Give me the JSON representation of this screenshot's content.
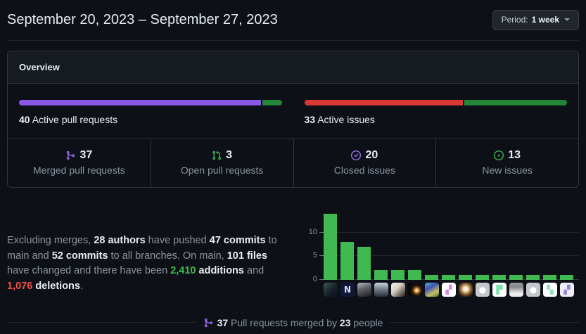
{
  "header": {
    "title": "September 20, 2023 – September 27, 2023",
    "period_button": {
      "label": "Period:",
      "value": "1 week"
    }
  },
  "overview": {
    "card_title": "Overview",
    "pull_requests": {
      "count": "40",
      "label": " Active pull requests",
      "segments": [
        {
          "color": "#8957e5",
          "pct": 92.5
        },
        {
          "color": "#238636",
          "pct": 7.5
        }
      ]
    },
    "issues": {
      "count": "33",
      "label": " Active issues",
      "segments": [
        {
          "color": "#da3633",
          "pct": 60.6
        },
        {
          "color": "#238636",
          "pct": 39.4
        }
      ]
    },
    "stats": [
      {
        "value": "37",
        "label": "Merged pull requests",
        "icon": "git-merge-icon",
        "color": "#a371f7"
      },
      {
        "value": "3",
        "label": "Open pull requests",
        "icon": "git-pull-request-icon",
        "color": "#3fb950"
      },
      {
        "value": "20",
        "label": "Closed issues",
        "icon": "issue-closed-icon",
        "color": "#a371f7"
      },
      {
        "value": "13",
        "label": "New issues",
        "icon": "issue-opened-icon",
        "color": "#3fb950"
      }
    ]
  },
  "summary": {
    "t1": "Excluding merges, ",
    "b1": "28 authors",
    "t2": " have pushed ",
    "b2": "47 commits",
    "t3": " to main and ",
    "b3": "52 commits",
    "t4": " to all branches. On main, ",
    "b4": "101 files",
    "t5": " have changed and there have been ",
    "additions_num": "2,410",
    "additions_word": " additions",
    "t6": " and ",
    "deletions_num": "1,076",
    "deletions_word": " deletions",
    "t7": "."
  },
  "chart_data": {
    "type": "bar",
    "description": "Commits per author during the period, one green bar per contributor avatar",
    "values": [
      14,
      8,
      7,
      2,
      2,
      2,
      1,
      1,
      1,
      1,
      1,
      1,
      1,
      1,
      1
    ],
    "yticks": [
      0,
      5,
      10
    ],
    "ylim": [
      0,
      15
    ],
    "bar_color": "#3fb950",
    "grid": true,
    "avatars": [
      {
        "bg": "linear-gradient(135deg,#3c5a52 0%,#16202b 55%,#0c1118 100%)",
        "fg": "",
        "glyph": ""
      },
      {
        "bg": "#11173a",
        "fg": "#dbe4f0",
        "glyph": "N"
      },
      {
        "bg": "linear-gradient(160deg,#b8bcc0 0%,#5a5e62 45%,#17191c 100%)",
        "fg": "",
        "glyph": ""
      },
      {
        "bg": "linear-gradient(180deg,#cdd6dd 0%,#7b8894 40%,#262e36 100%)",
        "fg": "",
        "glyph": ""
      },
      {
        "bg": "linear-gradient(135deg,#f2efe9 0%,#d9d2c7 40%,#20160f 100%)",
        "fg": "",
        "glyph": ""
      },
      {
        "bg": "radial-gradient(circle at 62% 55%, #ffd9a0 0 2px, #c77b2a 3px, #20140a 7px, #05070c 12px)",
        "fg": "",
        "glyph": ""
      },
      {
        "bg": "linear-gradient(150deg,#5ab0e0 0%,#3c55b4 35%,#c9c05e 70%,#3a7a4e 100%)",
        "fg": "",
        "glyph": ""
      },
      {
        "bg": "#ffffff",
        "fg": "#d98ad9",
        "glyph": "▞"
      },
      {
        "bg": "radial-gradient(circle at 50% 45%, #f7ecd2 0 3px, #b98f52 6px, #49301a 10px, #19100a 13px)",
        "fg": "",
        "glyph": ""
      },
      {
        "bg": "#c4c8cc",
        "fg": "#ffffff",
        "glyph": "●"
      },
      {
        "bg": "#ffffff",
        "fg": "#7fe3b0",
        "glyph": "▛"
      },
      {
        "bg": "linear-gradient(180deg,#97999b 0%,#85878a 30%,#ececec 75%)",
        "fg": "",
        "glyph": ""
      },
      {
        "bg": "#c4c8cc",
        "fg": "#ffffff",
        "glyph": "●"
      },
      {
        "bg": "#ffffff",
        "fg": "#8de3b8",
        "glyph": "▚"
      },
      {
        "bg": "#efeef8",
        "fg": "#9287dd",
        "glyph": "▞"
      }
    ]
  },
  "footer": {
    "num_prs": "37",
    "mid": " Pull requests merged by ",
    "num_people": "23",
    "end": " people"
  },
  "colors": {
    "background": "#0d1117",
    "card_border": "#30363d",
    "card_header_bg": "#161b22",
    "text_primary": "#e6edf3",
    "text_muted": "#8b949e",
    "accent_purple": "#a371f7",
    "accent_green": "#3fb950",
    "accent_red": "#f85149",
    "bar_purple": "#8957e5",
    "bar_red": "#da3633",
    "bar_green": "#238636"
  }
}
